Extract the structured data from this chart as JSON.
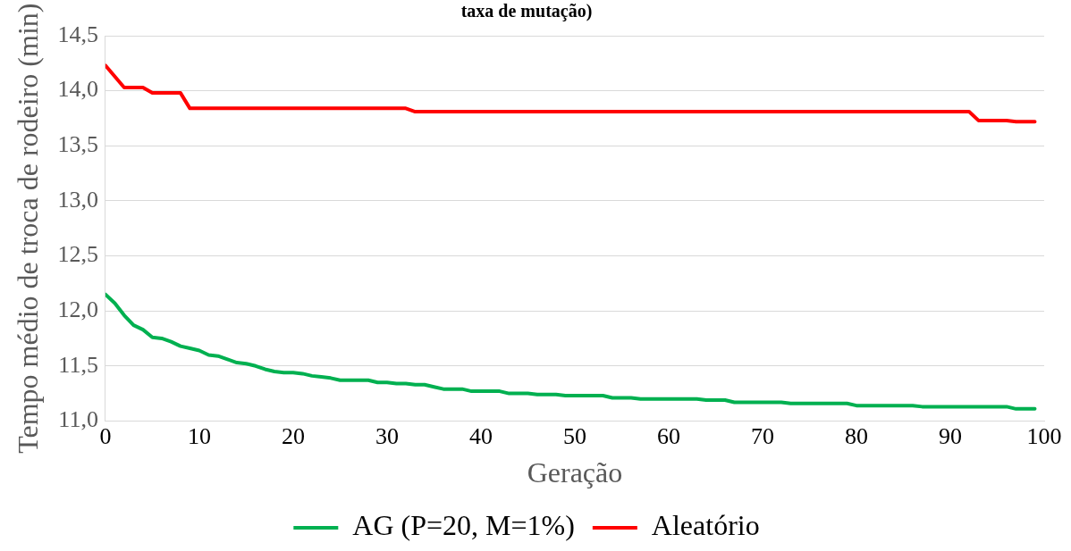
{
  "chart_data": {
    "type": "line",
    "title": "taxa de mutação)",
    "xlabel": "Geração",
    "ylabel": "Tempo médio de troca de rodeiro (min)",
    "xlim": [
      0,
      100
    ],
    "xticks": [
      0,
      10,
      20,
      30,
      40,
      50,
      60,
      70,
      80,
      90,
      100
    ],
    "ylim": [
      11.0,
      14.5
    ],
    "yticks": [
      {
        "value": 11.0,
        "label": "11,0"
      },
      {
        "value": 11.5,
        "label": "11,5"
      },
      {
        "value": 12.0,
        "label": "12,0"
      },
      {
        "value": 12.5,
        "label": "12,5"
      },
      {
        "value": 13.0,
        "label": "13,0"
      },
      {
        "value": 13.5,
        "label": "13,5"
      },
      {
        "value": 14.0,
        "label": "14,0"
      },
      {
        "value": 14.5,
        "label": "14,5"
      }
    ],
    "grid": "y",
    "legend": "bottom",
    "marker": "none",
    "line_style": "solid",
    "series": [
      {
        "name": "AG (P=20, M=1%)",
        "color": "#00b050",
        "x": [
          0,
          1,
          2,
          3,
          4,
          5,
          6,
          7,
          8,
          9,
          10,
          11,
          12,
          13,
          14,
          15,
          16,
          17,
          18,
          19,
          20,
          21,
          22,
          23,
          24,
          25,
          28,
          29,
          30,
          31,
          32,
          33,
          34,
          35,
          36,
          38,
          39,
          42,
          43,
          45,
          46,
          48,
          49,
          53,
          54,
          56,
          57,
          63,
          64,
          66,
          67,
          72,
          73,
          79,
          80,
          86,
          87,
          96,
          97,
          99
        ],
        "values": [
          12.15,
          12.07,
          11.96,
          11.87,
          11.83,
          11.76,
          11.75,
          11.72,
          11.68,
          11.66,
          11.64,
          11.6,
          11.59,
          11.56,
          11.53,
          11.52,
          11.5,
          11.47,
          11.45,
          11.44,
          11.44,
          11.43,
          11.41,
          11.4,
          11.39,
          11.37,
          11.37,
          11.35,
          11.35,
          11.34,
          11.34,
          11.33,
          11.33,
          11.31,
          11.29,
          11.29,
          11.27,
          11.27,
          11.25,
          11.25,
          11.24,
          11.24,
          11.23,
          11.23,
          11.21,
          11.21,
          11.2,
          11.2,
          11.19,
          11.19,
          11.17,
          11.17,
          11.16,
          11.16,
          11.14,
          11.14,
          11.13,
          11.13,
          11.11,
          11.11
        ]
      },
      {
        "name": "Aleatório",
        "color": "#ff0000",
        "x": [
          0,
          2,
          4,
          5,
          8,
          9,
          32,
          33,
          92,
          93,
          96,
          97,
          99
        ],
        "values": [
          14.23,
          14.03,
          14.03,
          13.98,
          13.98,
          13.84,
          13.84,
          13.81,
          13.81,
          13.73,
          13.73,
          13.72,
          13.72
        ]
      }
    ]
  }
}
